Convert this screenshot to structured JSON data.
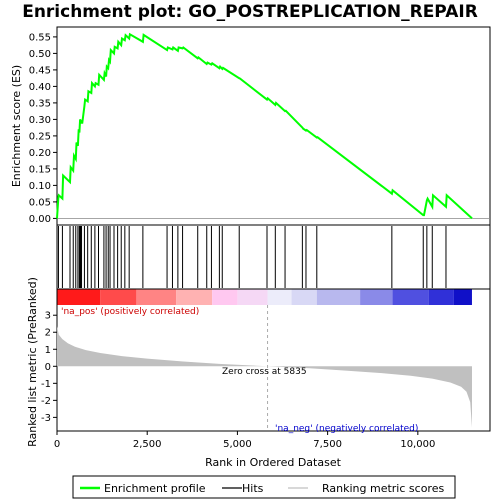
{
  "chart_data": {
    "type": "line",
    "title": "Enrichment plot: GO_POSTREPLICATION_REPAIR",
    "panels": {
      "enrichment": {
        "ylabel": "Enrichment score (ES)",
        "ylim": [
          -0.02,
          0.58
        ],
        "yticks": [
          0.0,
          0.05,
          0.1,
          0.15,
          0.2,
          0.25,
          0.3,
          0.35,
          0.4,
          0.45,
          0.5,
          0.55
        ],
        "ytick_labels": [
          "0.00",
          "0.05",
          "0.10",
          "0.15",
          "0.20",
          "0.25",
          "0.30",
          "0.35",
          "0.40",
          "0.45",
          "0.50",
          "0.55"
        ],
        "series": [
          {
            "name": "Enrichment profile",
            "color": "#00ff00",
            "x": [
              0,
              40,
              50,
              150,
              170,
              360,
              380,
              450,
              470,
              520,
              540,
              580,
              600,
              620,
              640,
              660,
              680,
              700,
              760,
              780,
              850,
              870,
              950,
              970,
              1050,
              1070,
              1150,
              1170,
              1300,
              1320,
              1360,
              1380,
              1420,
              1440,
              1470,
              1490,
              1580,
              1600,
              1680,
              1700,
              1780,
              1800,
              1880,
              1900,
              2000,
              2020,
              2380,
              2400,
              3050,
              3070,
              3200,
              3220,
              3350,
              3370,
              3480,
              3500,
              3900,
              3920,
              4150,
              4170,
              4280,
              4300,
              4500,
              4520,
              4580,
              4600,
              5050,
              5070,
              5820,
              5840,
              6050,
              6070,
              6320,
              6340,
              6800,
              6820,
              6900,
              6920,
              7200,
              7220,
              9280,
              9300,
              10150,
              10170,
              10250,
              10270,
              10400,
              10420,
              10780,
              10800,
              11500
            ],
            "y": [
              0.0,
              0.065,
              0.07,
              0.06,
              0.13,
              0.11,
              0.155,
              0.145,
              0.19,
              0.18,
              0.23,
              0.22,
              0.27,
              0.26,
              0.3,
              0.295,
              0.29,
              0.29,
              0.34,
              0.36,
              0.355,
              0.385,
              0.38,
              0.41,
              0.4,
              0.41,
              0.405,
              0.435,
              0.42,
              0.44,
              0.43,
              0.46,
              0.455,
              0.48,
              0.475,
              0.51,
              0.5,
              0.52,
              0.515,
              0.535,
              0.525,
              0.545,
              0.54,
              0.555,
              0.545,
              0.558,
              0.535,
              0.556,
              0.51,
              0.518,
              0.512,
              0.518,
              0.508,
              0.518,
              0.515,
              0.518,
              0.485,
              0.488,
              0.468,
              0.472,
              0.466,
              0.47,
              0.455,
              0.46,
              0.453,
              0.456,
              0.425,
              0.424,
              0.36,
              0.364,
              0.344,
              0.35,
              0.325,
              0.326,
              0.275,
              0.272,
              0.266,
              0.268,
              0.245,
              0.246,
              0.075,
              0.085,
              0.01,
              0.01,
              0.055,
              0.06,
              0.035,
              0.07,
              0.035,
              0.07,
              0.0
            ]
          }
        ]
      },
      "hits": {
        "name": "Hits",
        "positions": [
          40,
          150,
          360,
          450,
          520,
          580,
          620,
          640,
          660,
          680,
          760,
          850,
          950,
          1050,
          1150,
          1300,
          1360,
          1420,
          1470,
          1580,
          1680,
          1780,
          1880,
          2000,
          2380,
          3050,
          3200,
          3350,
          3480,
          3900,
          4150,
          4280,
          4500,
          4580,
          5050,
          5820,
          6050,
          6320,
          6800,
          6900,
          7200,
          9280,
          10150,
          10250,
          10400,
          10780
        ]
      },
      "colorbar": {
        "segments": [
          {
            "from": 0,
            "to": 1200,
            "color": "#ff1a1a"
          },
          {
            "from": 1200,
            "to": 2200,
            "color": "#ff4b4b"
          },
          {
            "from": 2200,
            "to": 3300,
            "color": "#ff8484"
          },
          {
            "from": 3300,
            "to": 4300,
            "color": "#ffb2b2"
          },
          {
            "from": 4300,
            "to": 5000,
            "color": "#ffc8f0"
          },
          {
            "from": 5000,
            "to": 5835,
            "color": "#f5d8f5"
          },
          {
            "from": 5835,
            "to": 6500,
            "color": "#ececfa"
          },
          {
            "from": 6500,
            "to": 7200,
            "color": "#d8d8f5"
          },
          {
            "from": 7200,
            "to": 8400,
            "color": "#b8b8ee"
          },
          {
            "from": 8400,
            "to": 9300,
            "color": "#8a8ae8"
          },
          {
            "from": 9300,
            "to": 10300,
            "color": "#5050e0"
          },
          {
            "from": 10300,
            "to": 11000,
            "color": "#3030d8"
          },
          {
            "from": 11000,
            "to": 11500,
            "color": "#1010c8"
          }
        ]
      },
      "ranking": {
        "ylabel": "Ranked list metric (PreRanked)",
        "xlabel": "Rank in Ordered Dataset",
        "ylim": [
          -3.8,
          3.6
        ],
        "yticks": [
          -3,
          -2,
          -1,
          0,
          1,
          2,
          3
        ],
        "ytick_labels": [
          "-3",
          "-2",
          "-1",
          "0",
          "1",
          "2",
          "3"
        ],
        "xlim": [
          0,
          12000
        ],
        "xticks": [
          0,
          2500,
          5000,
          7500,
          10000
        ],
        "xtick_labels": [
          "0",
          "2,500",
          "5,000",
          "7,500",
          "10,000"
        ],
        "series": [
          {
            "name": "Ranking metric scores",
            "color": "#c0c0c0",
            "x": [
              0,
              50,
              150,
              300,
              500,
              800,
              1200,
              1800,
              2500,
              3500,
              4500,
              5835,
              7000,
              8000,
              9000,
              9800,
              10400,
              10900,
              11200,
              11350,
              11450,
              11500
            ],
            "y": [
              2.35,
              1.85,
              1.6,
              1.35,
              1.15,
              0.95,
              0.78,
              0.6,
              0.45,
              0.28,
              0.14,
              0.0,
              -0.12,
              -0.25,
              -0.4,
              -0.55,
              -0.72,
              -0.95,
              -1.2,
              -1.5,
              -2.1,
              -3.6
            ]
          }
        ],
        "zero_cross": 5835,
        "annotations": {
          "pos_label": "'na_pos' (positively correlated)",
          "neg_label": "'na_neg' (negatively correlated)",
          "zero_label": "Zero cross at 5835"
        }
      }
    },
    "legend": {
      "placement": "bottom",
      "items": [
        {
          "label": "Enrichment profile",
          "color": "#00ff00"
        },
        {
          "label": "Hits",
          "color": "#000000"
        },
        {
          "label": "Ranking metric scores",
          "color": "#c0c0c0"
        }
      ]
    }
  }
}
